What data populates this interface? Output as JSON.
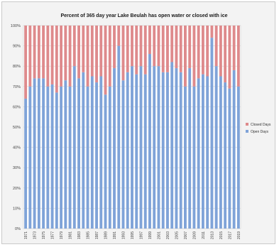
{
  "chart_data": {
    "type": "bar",
    "stacked": true,
    "title": "Percent of 365 day year Lake Beulah has open water or closed with ice",
    "xlabel": "",
    "ylabel": "",
    "ylim": [
      0,
      100
    ],
    "y_ticks": [
      "0%",
      "10%",
      "20%",
      "30%",
      "40%",
      "50%",
      "60%",
      "70%",
      "80%",
      "90%",
      "100%"
    ],
    "grid": true,
    "legend_position": "right",
    "x_ticks": [
      "1971",
      "1973",
      "1975",
      "1977",
      "1979",
      "1981",
      "1983",
      "1985",
      "1987",
      "1989",
      "1991",
      "1993",
      "1995",
      "1997",
      "1999",
      "2001",
      "2003",
      "2005",
      "2007",
      "2009",
      "2011",
      "2013",
      "2015",
      "2017",
      "2019"
    ],
    "categories": [
      "1971",
      "1972",
      "1973",
      "1974",
      "1975",
      "1976",
      "1977",
      "1978",
      "1979",
      "1980",
      "1981",
      "1982",
      "1983",
      "1984",
      "1985",
      "1986",
      "1987",
      "1988",
      "1989",
      "1990",
      "1991",
      "1992",
      "1993",
      "1994",
      "1995",
      "1996",
      "1997",
      "1998",
      "1999",
      "2000",
      "2001",
      "2002",
      "2003",
      "2004",
      "2005",
      "2006",
      "2007",
      "2008",
      "2009",
      "2010",
      "2011",
      "2012",
      "2013",
      "2014",
      "2015",
      "2016",
      "2017",
      "2018",
      "2019"
    ],
    "series": [
      {
        "name": "Open Days",
        "color": "#7fa3d8",
        "values": [
          64,
          70,
          74,
          74,
          74,
          70,
          71,
          67,
          70,
          73,
          70,
          80,
          74,
          77,
          70,
          75,
          72,
          75,
          66,
          70,
          79,
          90,
          73,
          77,
          80,
          76,
          80,
          76,
          86,
          80,
          80,
          77,
          77,
          82,
          79,
          77,
          70,
          79,
          70,
          74,
          76,
          75,
          94,
          80,
          75,
          72,
          69,
          78,
          70
        ]
      },
      {
        "name": "Closed Days",
        "color": "#de8a8c",
        "values": [
          36,
          30,
          26,
          26,
          26,
          30,
          29,
          33,
          30,
          27,
          30,
          20,
          26,
          23,
          30,
          25,
          28,
          25,
          34,
          30,
          21,
          10,
          27,
          23,
          20,
          24,
          20,
          24,
          14,
          20,
          20,
          23,
          23,
          18,
          21,
          23,
          30,
          21,
          30,
          26,
          24,
          25,
          6,
          20,
          25,
          28,
          31,
          22,
          30
        ]
      }
    ],
    "legend": [
      "Closed Days",
      "Open Days"
    ]
  }
}
